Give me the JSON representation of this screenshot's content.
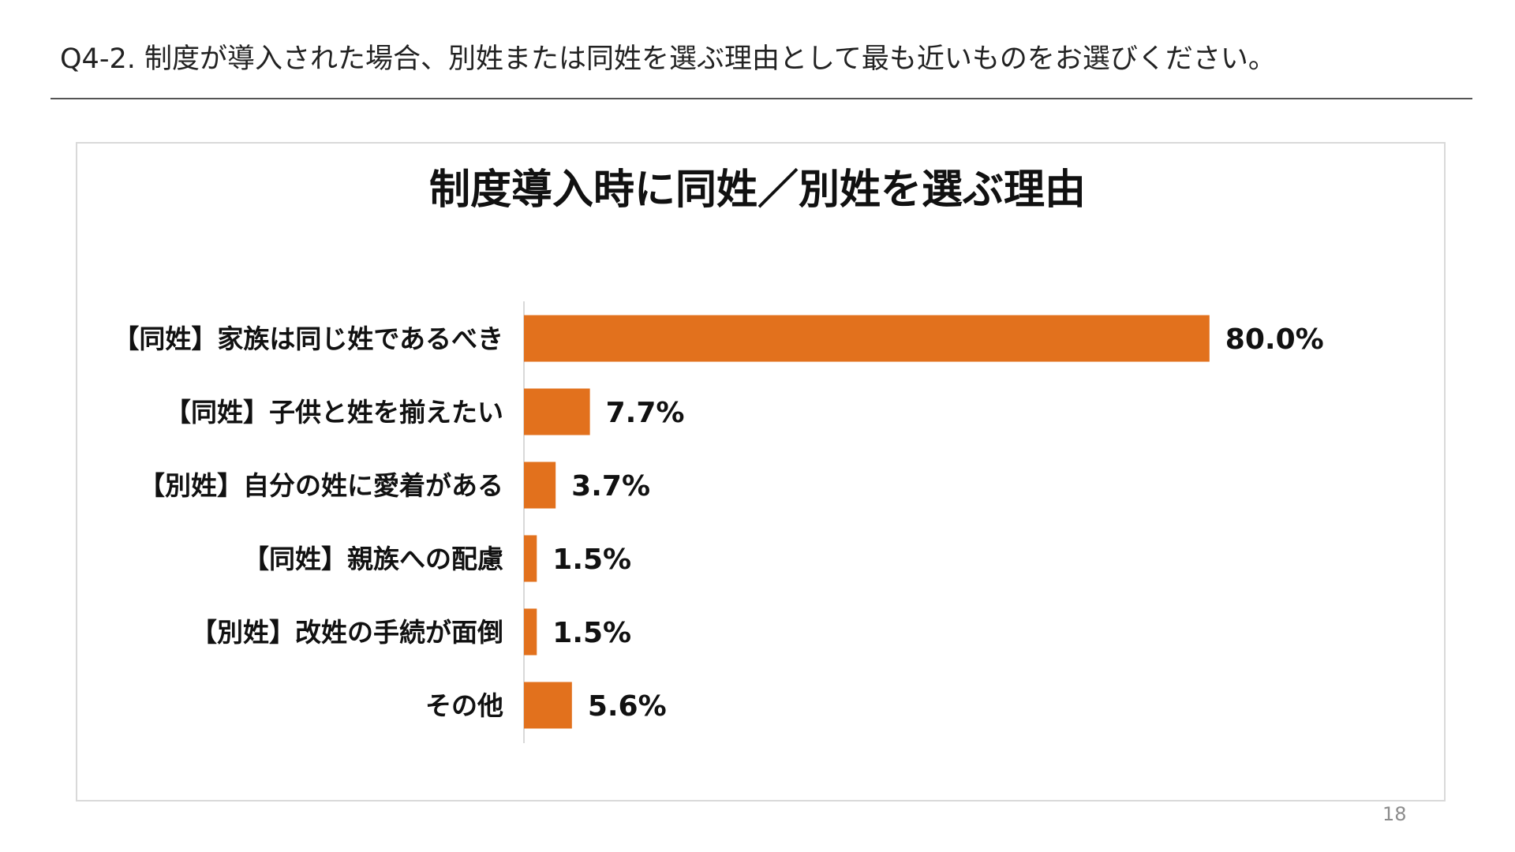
{
  "slide": {
    "heading": "Q4-2. 制度が導入された場合、別姓または同姓を選ぶ理由として最も近いものをお選びください。",
    "page_number": "18"
  },
  "chart_data": {
    "type": "bar",
    "orientation": "horizontal",
    "title": "制度導入時に同姓／別姓を選ぶ理由",
    "categories": [
      "【同姓】家族は同じ姓であるべき",
      "【同姓】子供と姓を揃えたい",
      "【別姓】自分の姓に愛着がある",
      "【同姓】親族への配慮",
      "【別姓】改姓の手続が面倒",
      "その他"
    ],
    "values": [
      80.0,
      7.7,
      3.7,
      1.5,
      1.5,
      5.6
    ],
    "value_labels": [
      "80.0%",
      "7.7%",
      "3.7%",
      "1.5%",
      "1.5%",
      "5.6%"
    ],
    "xlim": [
      0,
      100
    ],
    "grid": false,
    "legend": "none",
    "bar_color": "#E2711D"
  }
}
